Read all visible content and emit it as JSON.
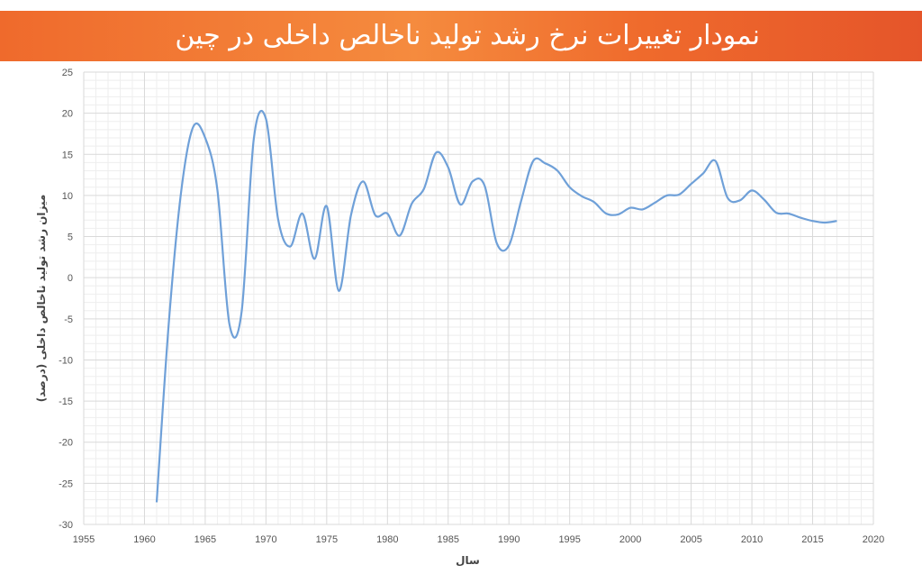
{
  "title": "نمودار تغییرات نرخ رشد تولید ناخالص داخلی در چین",
  "colors": {
    "banner": "#ef6a2c",
    "line": "#6fa0d8",
    "grid_major": "#d9d9d9",
    "grid_minor": "#eeeeee"
  },
  "chart_data": {
    "type": "line",
    "title": "نمودار تغییرات نرخ رشد تولید ناخالص داخلی در چین",
    "xlabel": "سال",
    "ylabel": "میزان رشد تولید ناخالص داخلی (درصد)",
    "xlim": [
      1955,
      2020
    ],
    "ylim": [
      -30,
      25
    ],
    "x_ticks": [
      "1955",
      "1960",
      "1965",
      "1970",
      "1975",
      "1980",
      "1985",
      "1990",
      "1995",
      "2000",
      "2005",
      "2010",
      "2015",
      "2020"
    ],
    "y_ticks": [
      "25",
      "20",
      "15",
      "10",
      "5",
      "0",
      "-5",
      "-10",
      "-15",
      "-20",
      "-25",
      "-30"
    ],
    "grid": true,
    "series": [
      {
        "x": [
          1961,
          1962,
          1963,
          1964,
          1965,
          1966,
          1967,
          1968,
          1969,
          1970,
          1971,
          1972,
          1973,
          1974,
          1975,
          1976,
          1977,
          1978,
          1979,
          1980,
          1981,
          1982,
          1983,
          1984,
          1985,
          1986,
          1987,
          1988,
          1989,
          1990,
          1991,
          1992,
          1993,
          1994,
          1995,
          1996,
          1997,
          1998,
          1999,
          2000,
          2001,
          2002,
          2003,
          2004,
          2005,
          2006,
          2007,
          2008,
          2009,
          2010,
          2011,
          2012,
          2013,
          2014,
          2015,
          2016,
          2017
        ],
        "y": [
          -27.3,
          -5.6,
          10.2,
          18.3,
          17.0,
          10.7,
          -5.7,
          -4.1,
          16.9,
          19.3,
          7.1,
          3.8,
          7.8,
          2.3,
          8.7,
          -1.6,
          7.6,
          11.7,
          7.6,
          7.8,
          5.1,
          9.0,
          10.8,
          15.2,
          13.4,
          8.9,
          11.7,
          11.2,
          4.2,
          3.9,
          9.3,
          14.2,
          13.9,
          13.0,
          11.0,
          9.9,
          9.2,
          7.8,
          7.7,
          8.5,
          8.3,
          9.1,
          10.0,
          10.1,
          11.4,
          12.7,
          14.2,
          9.7,
          9.4,
          10.6,
          9.5,
          7.9,
          7.8,
          7.3,
          6.9,
          6.7,
          6.9
        ]
      }
    ]
  }
}
